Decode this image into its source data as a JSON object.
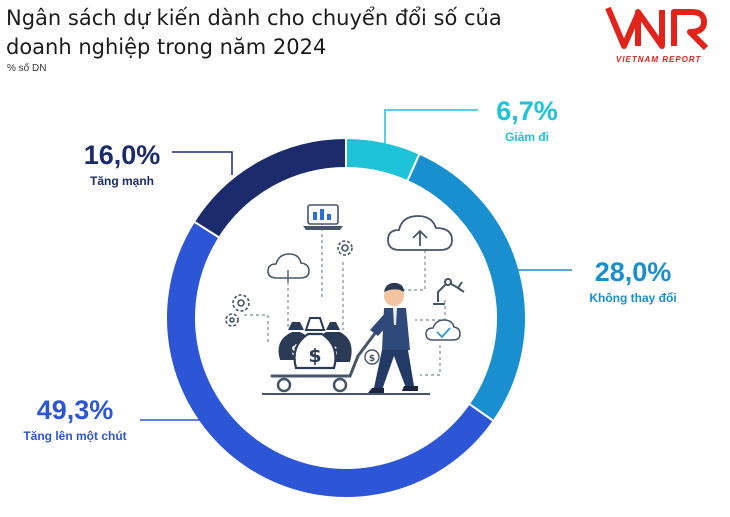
{
  "title": "Ngân sách dự kiến dành cho chuyển đổi số của doanh nghiệp trong năm 2024",
  "unit": "% số DN",
  "logo": {
    "text": "VIETNAM REPORT"
  },
  "colors": {
    "tang_manh": "#1b2b6b",
    "giam_di": "#1ec3d8",
    "khong_thay_doi": "#1a8fd0",
    "tang_len_mot_chut": "#2c56d6"
  },
  "chart_data": {
    "type": "pie",
    "style": "donut",
    "slices": [
      {
        "label": "Giảm đi",
        "value": 6.7,
        "value_label": "6,7%",
        "color": "#1ec3d8"
      },
      {
        "label": "Không thay đổi",
        "value": 28.0,
        "value_label": "28,0%",
        "color": "#1a8fd0"
      },
      {
        "label": "Tăng lên một chút",
        "value": 49.3,
        "value_label": "49,3%",
        "color": "#2c56d6"
      },
      {
        "label": "Tăng mạnh",
        "value": 16.0,
        "value_label": "16,0%",
        "color": "#1b2b6b"
      }
    ]
  },
  "illustration": {
    "icons": [
      "laptop-chart-icon",
      "cloud-icon",
      "cloud-upload-icon",
      "gear-icon",
      "robot-arm-icon",
      "cloud-check-icon",
      "money-bag-icon",
      "businessman-pushing-cart"
    ]
  }
}
